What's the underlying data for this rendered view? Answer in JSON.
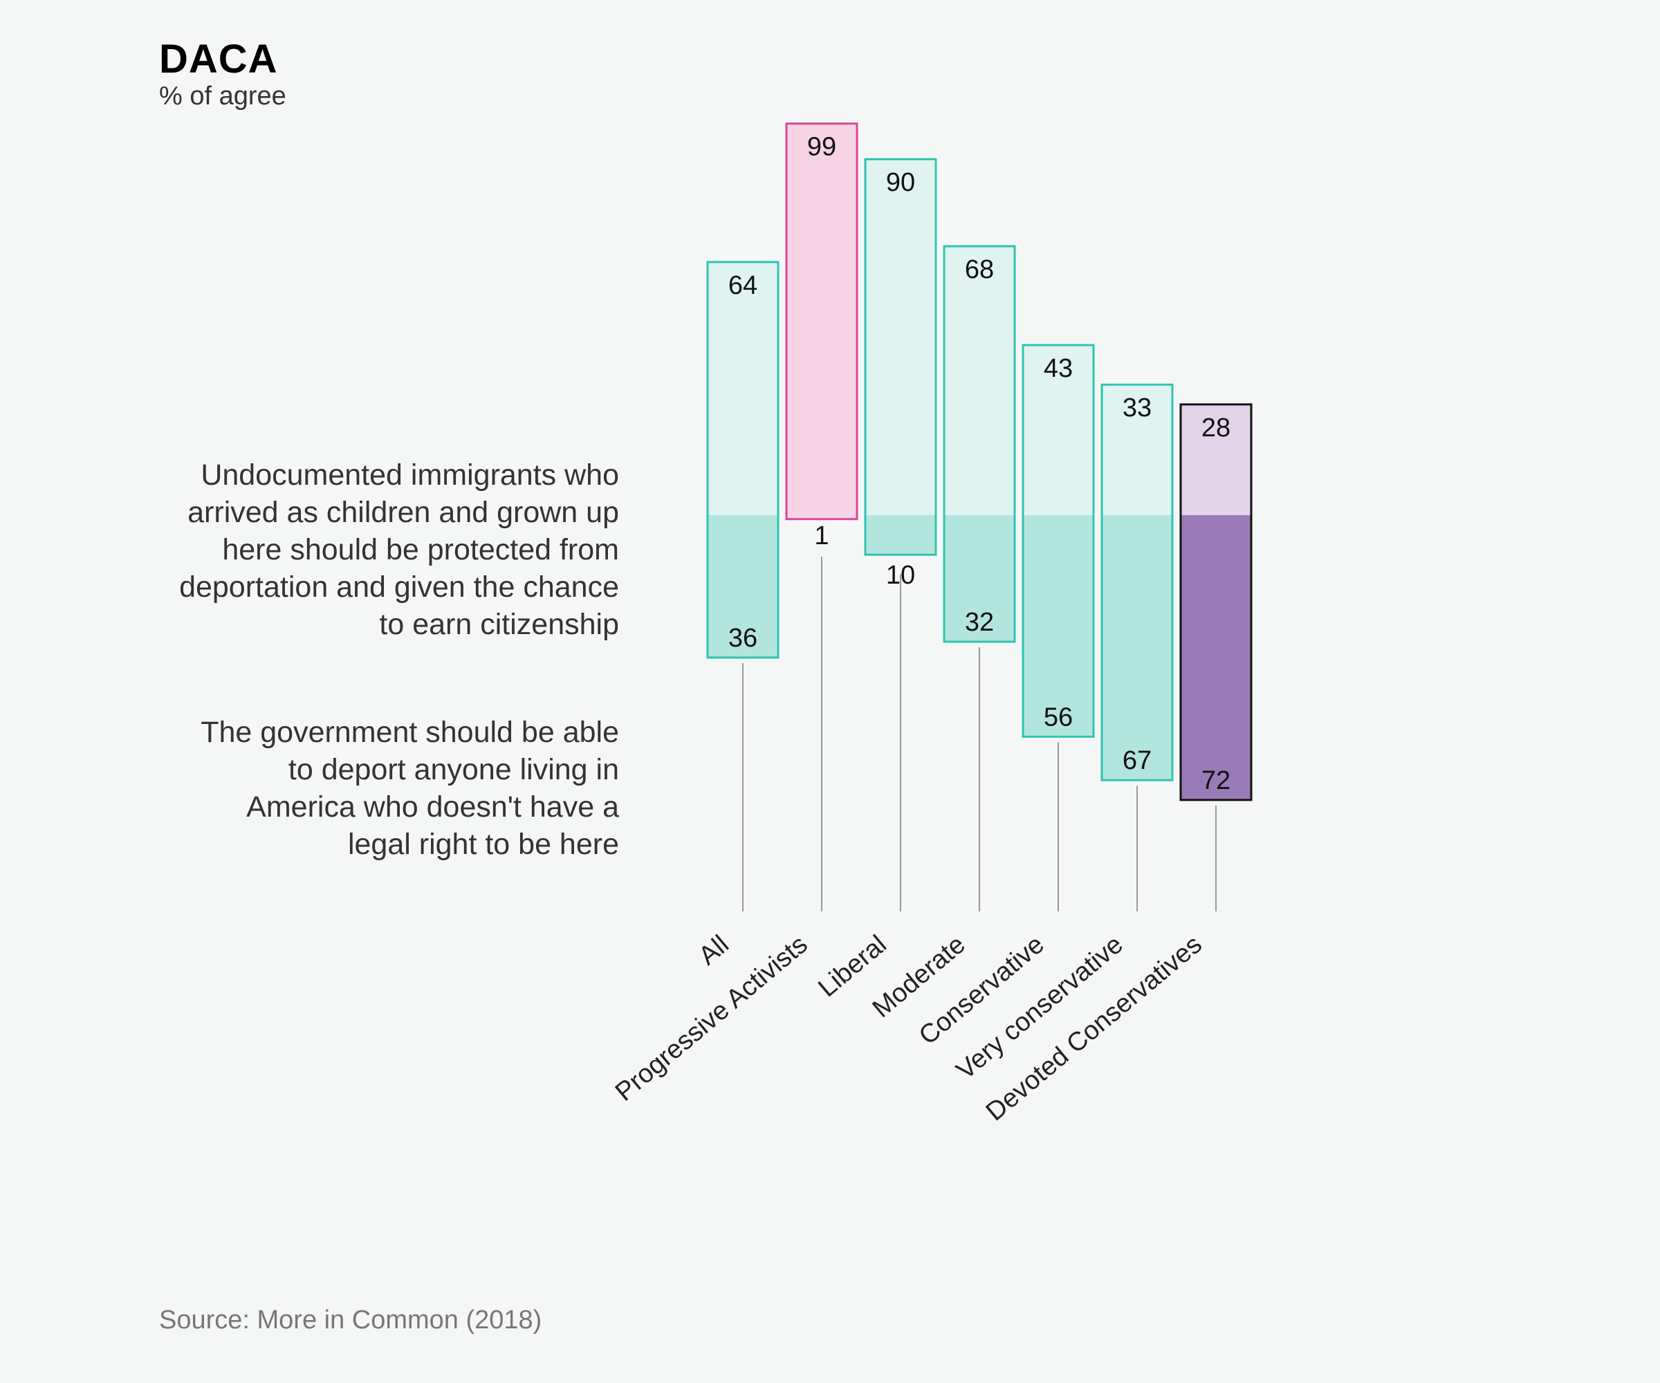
{
  "title": "DACA",
  "subtitle": "% of agree",
  "statements": {
    "top": "Undocumented immigrants who arrived as children and grown up here should be protected from deportation and given the chance to earn citizenship",
    "bottom": "The government should be able to deport anyone living in America who doesn't have a legal right to be here"
  },
  "source": "Source: More in Common (2018)",
  "chart_data": {
    "type": "bar",
    "title": "DACA",
    "subtitle": "% of agree",
    "categories": [
      "All",
      "Progressive Activists",
      "Liberal",
      "Moderate",
      "Conservative",
      "Very conservative",
      "Devoted Conservatives"
    ],
    "series": [
      {
        "name": "Undocumented immigrants who arrived as children and grown up here should be protected from deportation and given the chance to earn citizenship",
        "values": [
          64,
          99,
          90,
          68,
          43,
          33,
          28
        ]
      },
      {
        "name": "The government should be able to deport anyone living in America who doesn't have a legal right to be here",
        "values": [
          36,
          1,
          10,
          32,
          56,
          67,
          72
        ]
      }
    ],
    "highlight": {
      "Progressive Activists": "#d9479a",
      "Devoted Conservatives": "#111111"
    },
    "colors": {
      "default_border": "#2ec4b0",
      "default_top_fill": "#dff3f0",
      "default_bottom_fill": "#b3e5df",
      "pa_fill": "#f7d3e6",
      "dc_top_fill": "#e3d3e8",
      "dc_bottom_fill": "#9b7bb7",
      "leader": "#999999"
    },
    "ylim": [
      0,
      100
    ]
  }
}
